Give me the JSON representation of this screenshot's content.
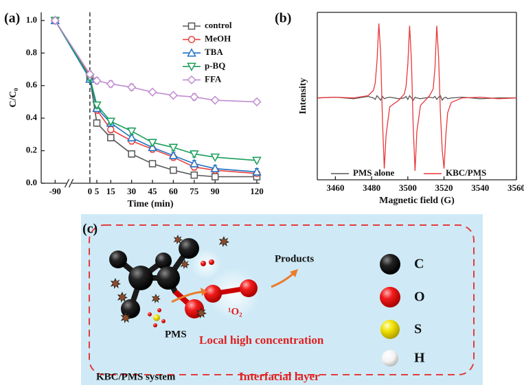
{
  "chart_data": [
    {
      "type": "line",
      "panel_label": "(a)",
      "xlabel": "Time (min)",
      "ylabel": "C/C₀",
      "x": [
        -90,
        0,
        5,
        15,
        30,
        45,
        60,
        75,
        90,
        120
      ],
      "xlim": [
        -100,
        122
      ],
      "x_break": [
        -80,
        -15
      ],
      "xticks": [
        -90,
        0,
        5,
        15,
        30,
        45,
        60,
        75,
        90,
        120
      ],
      "ylim": [
        0,
        1.05
      ],
      "yticks": [
        {
          "value": 0,
          "label": "0.0"
        },
        0.2,
        0.4,
        0.6,
        0.8,
        {
          "value": 1,
          "label": "1.0"
        }
      ],
      "vline": 0,
      "legend": "upper right",
      "series": [
        {
          "name": "control",
          "color": "#555555",
          "marker": "square",
          "values": [
            1.0,
            0.65,
            0.37,
            0.28,
            0.18,
            0.12,
            0.08,
            0.05,
            0.04,
            0.04
          ],
          "errors": [
            0.01,
            0.02,
            0.02,
            0.02,
            0.02,
            0.01,
            0.01,
            0.01,
            0.01,
            0.01
          ]
        },
        {
          "name": "MeOH",
          "color": "#e8413e",
          "marker": "circle",
          "values": [
            1.0,
            0.66,
            0.45,
            0.33,
            0.26,
            0.21,
            0.16,
            0.1,
            0.08,
            0.06
          ],
          "errors": [
            0.01,
            0.02,
            0.02,
            0.02,
            0.02,
            0.02,
            0.02,
            0.02,
            0.01,
            0.01
          ]
        },
        {
          "name": "TBA",
          "color": "#1f6fc1",
          "marker": "triangle-up",
          "values": [
            1.0,
            0.64,
            0.46,
            0.37,
            0.28,
            0.22,
            0.17,
            0.12,
            0.09,
            0.07
          ],
          "errors": [
            0.01,
            0.02,
            0.02,
            0.02,
            0.02,
            0.02,
            0.02,
            0.02,
            0.02,
            0.02
          ]
        },
        {
          "name": "p-BQ",
          "color": "#1a9e5b",
          "marker": "triangle-down",
          "values": [
            1.0,
            0.65,
            0.48,
            0.38,
            0.32,
            0.25,
            0.22,
            0.18,
            0.16,
            0.14
          ],
          "errors": [
            0.01,
            0.02,
            0.02,
            0.02,
            0.02,
            0.02,
            0.02,
            0.02,
            0.01,
            0.01
          ]
        },
        {
          "name": "FFA",
          "color": "#c08cd0",
          "marker": "diamond",
          "values": [
            1.0,
            0.67,
            0.63,
            0.61,
            0.59,
            0.56,
            0.54,
            0.53,
            0.51,
            0.5
          ],
          "errors": [
            0.01,
            0.02,
            0.02,
            0.02,
            0.02,
            0.01,
            0.01,
            0.02,
            0.01,
            0.01
          ]
        }
      ]
    },
    {
      "type": "line",
      "panel_label": "(b)",
      "xlabel": "Magnetic field (G)",
      "ylabel": "Intensity",
      "x": [
        3450,
        3460,
        3470,
        3478,
        3481,
        3482,
        3483,
        3484,
        3485,
        3486,
        3487,
        3488,
        3490,
        3495,
        3498,
        3499,
        3500,
        3501,
        3502,
        3503,
        3504,
        3505,
        3507,
        3512,
        3514,
        3515,
        3516,
        3517,
        3518,
        3519,
        3520,
        3521,
        3522,
        3524,
        3530,
        3540,
        3550,
        3560
      ],
      "xlim": [
        3450,
        3560
      ],
      "xticks": [
        3460,
        3480,
        3500,
        3520,
        3540,
        3560
      ],
      "ylim": [
        -1.1,
        1.15
      ],
      "legend": "lower center",
      "series": [
        {
          "name": "PMS alone",
          "color": "#555555",
          "values": [
            0,
            0.01,
            -0.01,
            0.02,
            0.0,
            -0.02,
            0.03,
            0.0,
            -0.03,
            0.02,
            -0.01,
            0.0,
            0.01,
            -0.01,
            0.0,
            0.02,
            -0.02,
            0.03,
            0.0,
            -0.03,
            0.01,
            0.0,
            -0.01,
            0.01,
            0.0,
            0.02,
            -0.02,
            0.01,
            0.03,
            -0.03,
            0.0,
            0.01,
            -0.01,
            0.0,
            0.01,
            -0.01,
            0.0,
            0.0
          ]
        },
        {
          "name": "KBC/PMS",
          "color": "#e8363a",
          "values": [
            0,
            0.01,
            0,
            0.03,
            0.1,
            0.2,
            0.5,
            1.0,
            0.6,
            -0.3,
            -0.95,
            -0.5,
            -0.12,
            -0.03,
            0.05,
            0.15,
            0.45,
            0.97,
            0.5,
            -0.4,
            -0.98,
            -0.45,
            -0.1,
            0.03,
            0.12,
            0.4,
            0.97,
            0.55,
            -0.2,
            -0.7,
            -0.95,
            -0.5,
            -0.2,
            -0.06,
            0,
            0.01,
            -0.01,
            0
          ]
        }
      ]
    }
  ],
  "diagram": {
    "panel_label": "(c)",
    "products": "Products",
    "singlet_oxygen": "¹O₂",
    "pms": "PMS",
    "local_label": "Local high concentration",
    "elements": [
      "C",
      "O",
      "S",
      "H"
    ],
    "system_label": "KBC/PMS system",
    "layer_label": "Interfacial layer"
  }
}
